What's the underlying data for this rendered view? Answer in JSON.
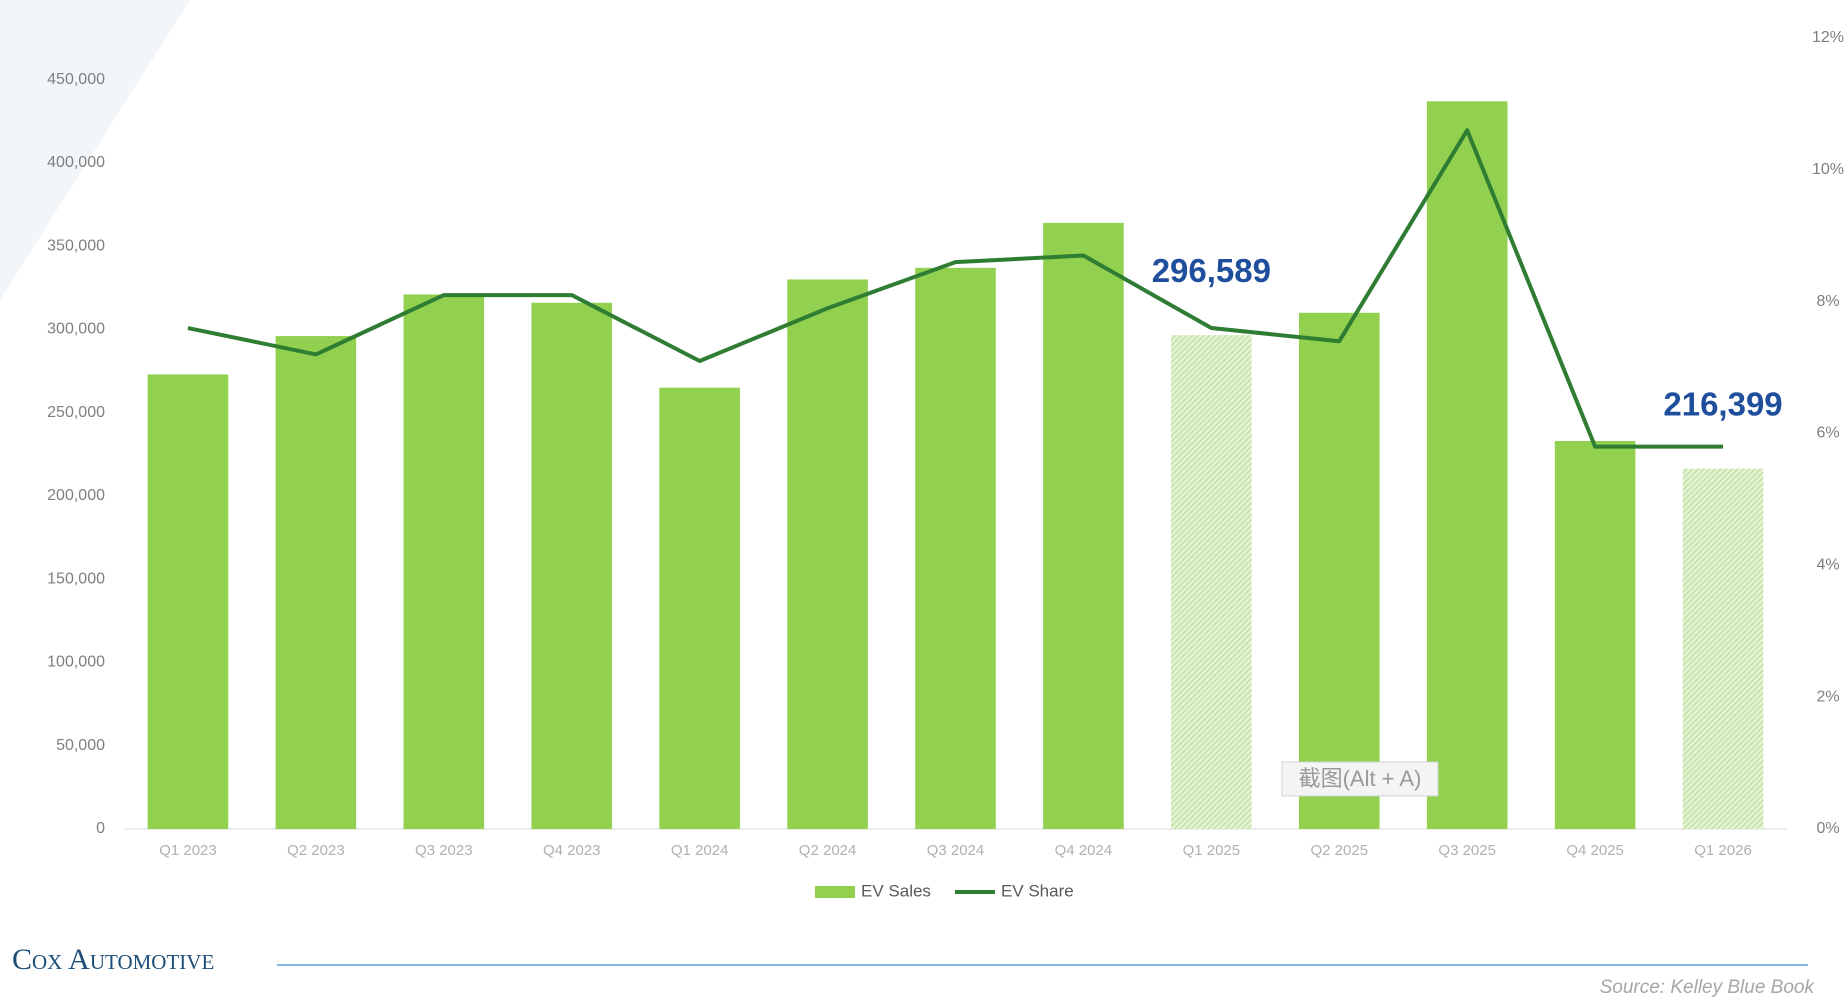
{
  "chart_data": {
    "type": "bar_line",
    "categories": [
      "Q1 2023",
      "Q2 2023",
      "Q3 2023",
      "Q4 2023",
      "Q1 2024",
      "Q2 2024",
      "Q3 2024",
      "Q4 2024",
      "Q1 2025",
      "Q2 2025",
      "Q3 2025",
      "Q4 2025",
      "Q1 2026"
    ],
    "series": [
      {
        "name": "EV Sales",
        "color": "#92d050",
        "kind": "bar",
        "values": [
          273000,
          296000,
          321000,
          316000,
          265000,
          330000,
          337000,
          364000,
          296589,
          310000,
          437000,
          233000,
          216399
        ],
        "value_labels": [
          null,
          null,
          null,
          null,
          null,
          null,
          null,
          null,
          "296,589",
          null,
          null,
          null,
          "216,399"
        ],
        "bar_styles": [
          "solid",
          "solid",
          "solid",
          "solid",
          "solid",
          "solid",
          "solid",
          "solid",
          "hatched",
          "solid",
          "solid",
          "solid",
          "hatched"
        ]
      },
      {
        "name": "EV Share",
        "color": "#2e7d32",
        "kind": "line",
        "axis": "y2",
        "values": [
          7.6,
          7.2,
          8.1,
          8.1,
          7.1,
          7.9,
          8.6,
          8.7,
          7.6,
          7.4,
          10.6,
          5.8,
          5.8
        ]
      }
    ],
    "ylim": [
      0,
      475000
    ],
    "yticks": [
      0,
      {
        "value": 50000,
        "label": "50,000"
      },
      {
        "value": 100000,
        "label": "100,000"
      },
      {
        "value": 150000,
        "label": "150,000"
      },
      {
        "value": 200000,
        "label": "200,000"
      },
      {
        "value": 250000,
        "label": "250,000"
      },
      {
        "value": 300000,
        "label": "300,000"
      },
      {
        "value": 350000,
        "label": "350,000"
      },
      {
        "value": 400000,
        "label": "400,000"
      },
      {
        "value": 450000,
        "label": "450,000"
      }
    ],
    "y2lim": [
      0,
      12
    ],
    "y2ticks": [
      {
        "value": 0,
        "label": "0%"
      },
      {
        "value": 2,
        "label": "2%"
      },
      {
        "value": 4,
        "label": "4%"
      },
      {
        "value": 6,
        "label": "6%"
      },
      {
        "value": 8,
        "label": "8%"
      },
      {
        "value": 10,
        "label": "10%"
      },
      {
        "value": 12,
        "label": "12%"
      }
    ],
    "grid": false,
    "legend": "bottom",
    "value_label_color": "#1f4e9c"
  },
  "footer": {
    "logo": "Cox Automotive",
    "source": "Source: Kelley Blue Book"
  },
  "overlay": {
    "tooltip": "截图(Alt + A)"
  }
}
